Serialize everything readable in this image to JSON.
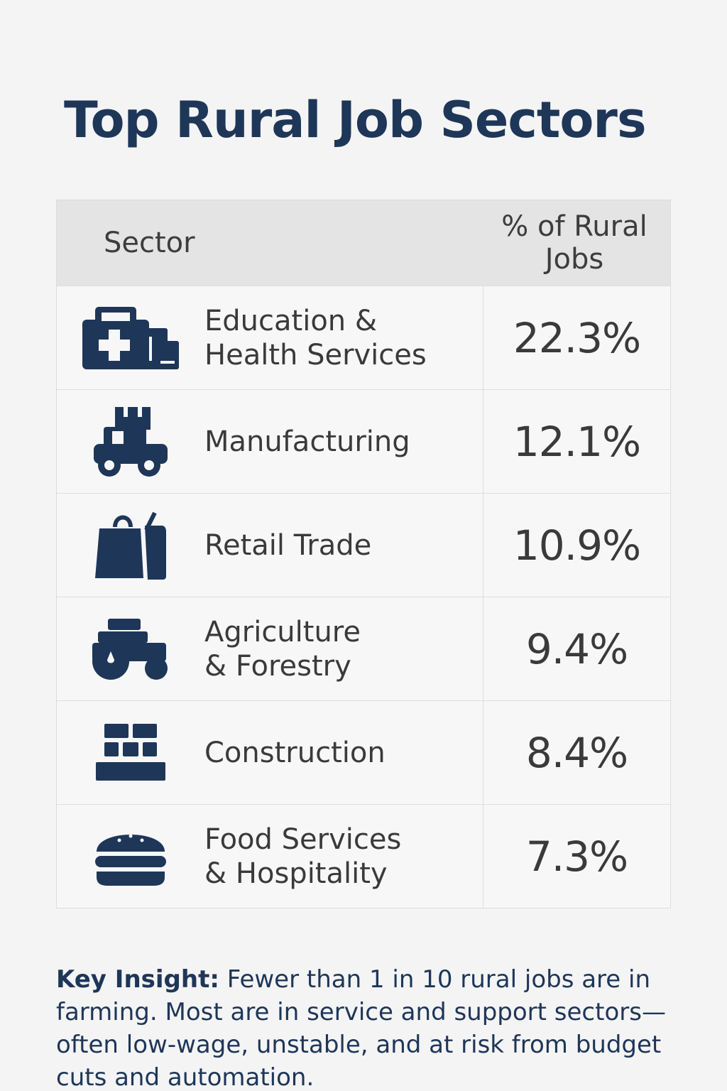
{
  "title": "Top Rural Job Sectors",
  "colors": {
    "title": "#1e3658",
    "icon": "#1e3658",
    "header_bg": "#e4e4e4",
    "body_text": "#3a3a3a"
  },
  "chart_data": {
    "type": "table",
    "columns": [
      "Sector",
      "% of Rural Jobs"
    ],
    "rows": [
      {
        "sector": "Education &\nHealth Services",
        "value": "22.3%",
        "icon": "medical-kit-icon"
      },
      {
        "sector": "Manufacturing",
        "value": "12.1%",
        "icon": "forklift-icon"
      },
      {
        "sector": "Retail Trade",
        "value": "10.9%",
        "icon": "shopping-bag-icon"
      },
      {
        "sector": "Agriculture\n& Forestry",
        "value": "9.4%",
        "icon": "tractor-icon"
      },
      {
        "sector": "Construction",
        "value": "8.4%",
        "icon": "bricks-icon"
      },
      {
        "sector": "Food Services\n& Hospitality",
        "value": "7.3%",
        "icon": "burger-icon"
      }
    ]
  },
  "insight": {
    "label": "Key Insight:",
    "text": " Fewer than 1 in 10 rural jobs are in farming. Most are in service and support sectors—often low-wage, unstable, and at risk from budget cuts and automation."
  }
}
